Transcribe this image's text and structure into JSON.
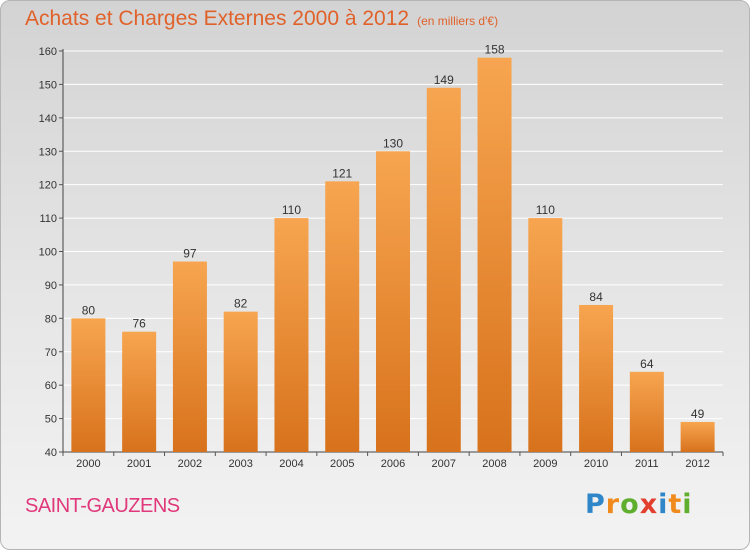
{
  "chart_title": "Achats et Charges Externes 2000 à 2012",
  "chart_subtitle": "(en milliers d'€)",
  "commune_name": "SAINT-GAUZENS",
  "logo": {
    "text": "Proxiti",
    "letters": [
      {
        "ch": "P",
        "color": "#2f86c8"
      },
      {
        "ch": "r",
        "color": "#f08a1c"
      },
      {
        "ch": "o",
        "color": "#5fae2e"
      },
      {
        "ch": "x",
        "color": "#e23f2f"
      },
      {
        "ch": "i",
        "color": "#2f86c8"
      },
      {
        "ch": "t",
        "color": "#f08a1c"
      },
      {
        "ch": "i",
        "color": "#5fae2e"
      }
    ]
  },
  "colors": {
    "bar_light": "#f7a550",
    "bar_dark": "#d8721c",
    "title": "#e0622a",
    "commune": "#e0387a"
  },
  "chart_data": {
    "type": "bar",
    "categories": [
      "2000",
      "2001",
      "2002",
      "2003",
      "2004",
      "2005",
      "2006",
      "2007",
      "2008",
      "2009",
      "2010",
      "2011",
      "2012"
    ],
    "values": [
      80,
      76,
      97,
      82,
      110,
      121,
      130,
      149,
      158,
      110,
      84,
      64,
      49
    ],
    "ylim": [
      40,
      160
    ],
    "yticks": [
      40,
      50,
      60,
      70,
      80,
      90,
      100,
      110,
      120,
      130,
      140,
      150,
      160
    ],
    "grid": true
  }
}
